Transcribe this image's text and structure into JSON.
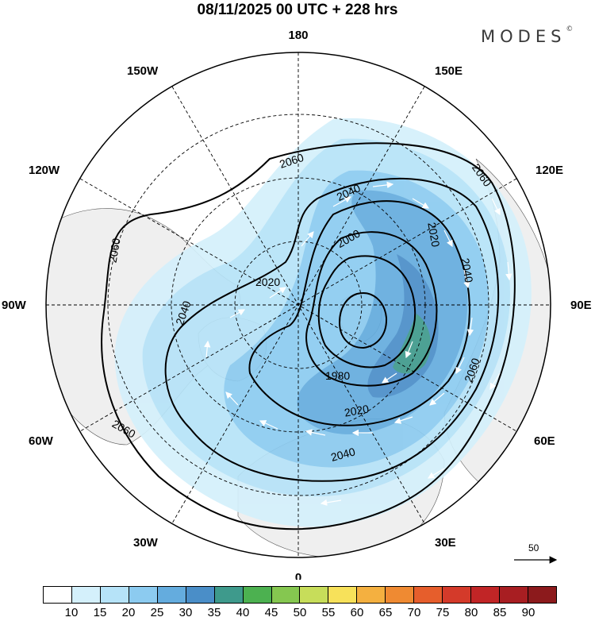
{
  "title": "08/11/2025  00 UTC  + 228 hrs",
  "brand": "MODES",
  "brand_mark": "©",
  "map": {
    "projection": "north-polar-stereographic",
    "longitude_labels": {
      "top": "180",
      "bottom": "0",
      "left": "90W",
      "right": "90E",
      "upper_left_outer": "150W",
      "upper_left_inner": "120W",
      "upper_right_outer": "150E",
      "upper_right_inner": "120E",
      "lower_left_inner": "60W",
      "lower_left_outer": "30W",
      "lower_right_inner": "60E",
      "lower_right_outer": "30E"
    },
    "contour_labels": [
      "2060",
      "2060",
      "2060",
      "2060",
      "2060",
      "2040",
      "2040",
      "2040",
      "2040",
      "2020",
      "2020",
      "2020",
      "2000",
      "1980"
    ],
    "vector_reference": "50",
    "colors": {
      "land": "#efefef",
      "graticule": "#000000",
      "contour": "#000000"
    }
  },
  "colorbar": {
    "ticks": [
      "10",
      "15",
      "20",
      "25",
      "30",
      "35",
      "40",
      "45",
      "50",
      "55",
      "60",
      "65",
      "70",
      "75",
      "80",
      "85",
      "90"
    ],
    "colors": [
      "#ffffff",
      "#d4f0fb",
      "#b6e3f8",
      "#8ccbf0",
      "#64acde",
      "#4a8ec8",
      "#3e9a8c",
      "#4cb150",
      "#85c750",
      "#c7dd5a",
      "#f7e15a",
      "#f4b040",
      "#ef8a32",
      "#e65e2c",
      "#d43a2a",
      "#c12526",
      "#a81e22",
      "#8c1a1c"
    ]
  }
}
